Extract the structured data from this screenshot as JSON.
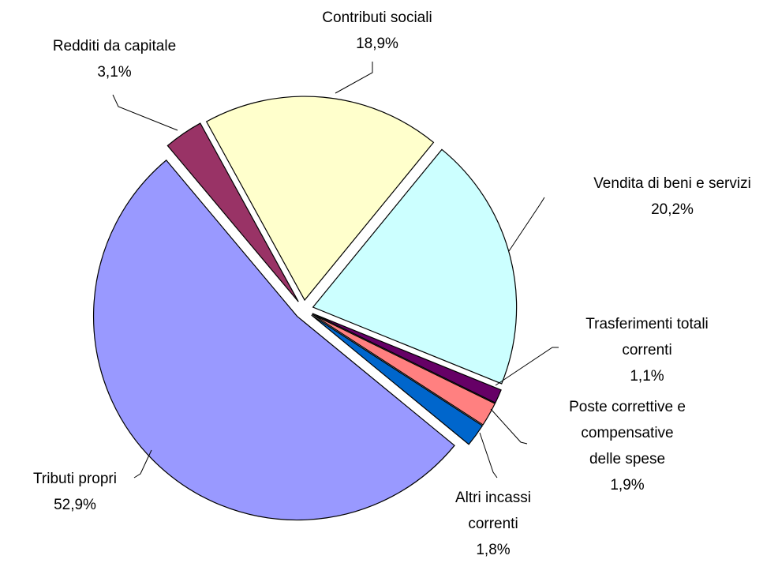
{
  "chart_data": {
    "type": "pie",
    "categories": [
      "Redditi da capitale",
      "Contributi sociali",
      "Vendita di beni e servizi",
      "Trasferimenti totali\ncorrenti",
      "Poste correttive e\ncompensative\ndelle spese",
      "Altri incassi\ncorrenti",
      "Tributi propri"
    ],
    "values": [
      3.1,
      18.9,
      20.2,
      1.1,
      1.9,
      1.8,
      52.9
    ],
    "value_labels": [
      "3,1%",
      "18,9%",
      "20,2%",
      "1,1%",
      "1,9%",
      "1,8%",
      "52,9%"
    ],
    "colors": [
      "#993366",
      "#ffffcc",
      "#ccffff",
      "#660066",
      "#ff8080",
      "#0066cc",
      "#9999ff"
    ]
  }
}
